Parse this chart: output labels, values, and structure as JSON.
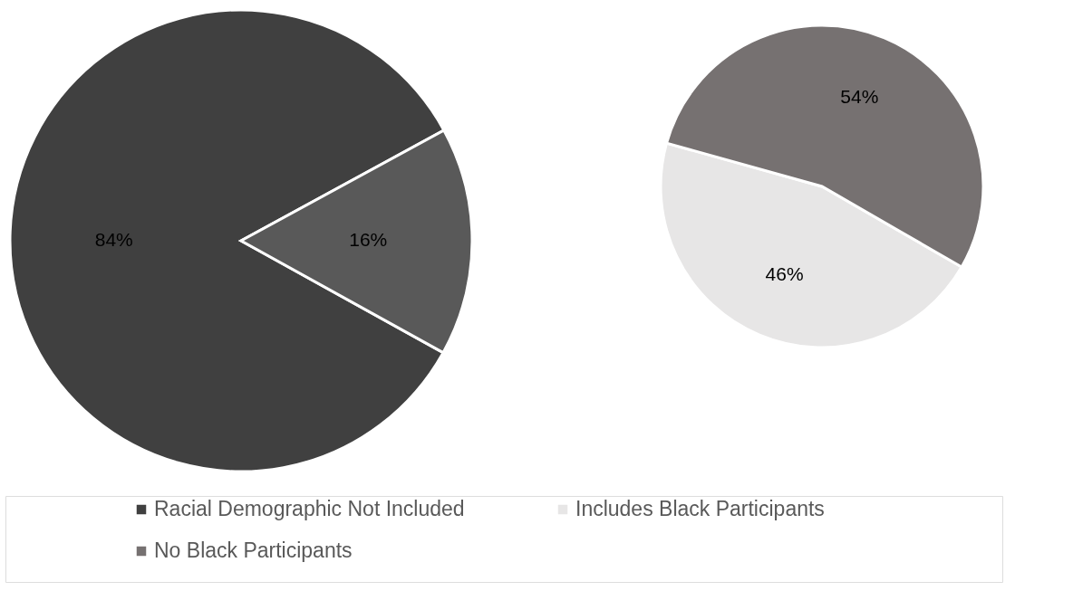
{
  "chart_data": [
    {
      "type": "pie",
      "categories": [
        "Racial Demographic Not Included",
        null
      ],
      "values": [
        84,
        16
      ],
      "colors": [
        "#404040",
        "#595959"
      ],
      "value_labels": [
        "84%",
        "16%"
      ],
      "legend": "bottom"
    },
    {
      "type": "pie",
      "categories": [
        "Includes Black Participants",
        "No Black Participants"
      ],
      "values": [
        46,
        54
      ],
      "colors": [
        "#e7e6e6",
        "#767171"
      ],
      "value_labels": [
        "46%",
        "54%"
      ],
      "legend": "bottom"
    }
  ]
}
